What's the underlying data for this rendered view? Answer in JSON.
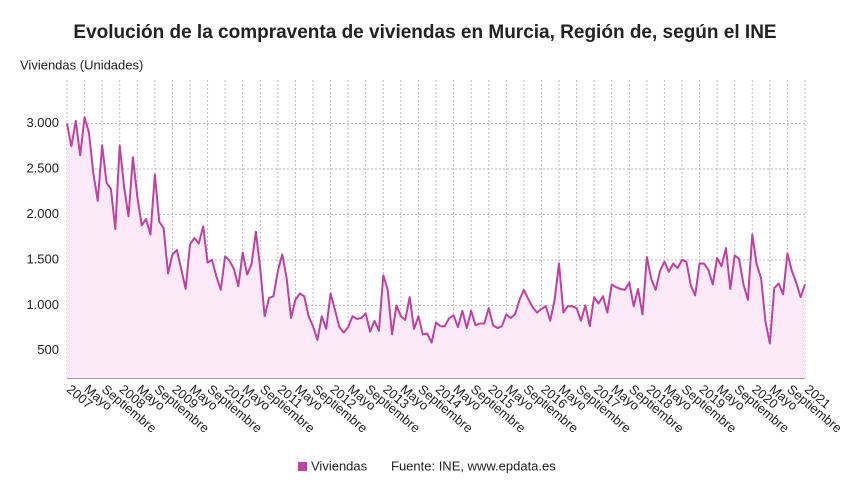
{
  "chart_data": {
    "type": "line",
    "title": "Evolución de la compraventa de viviendas en Murcia, Región de, según el INE",
    "y_label": "Viviendas (Unidades)",
    "source": "Fuente: INE, www.epdata.es",
    "categories": [
      "2007",
      null,
      null,
      null,
      "Mayo",
      null,
      null,
      null,
      "Septiembre",
      null,
      null,
      null,
      "2008",
      null,
      null,
      null,
      "Mayo",
      null,
      null,
      null,
      "Septiembre",
      null,
      null,
      null,
      "2009",
      null,
      null,
      null,
      "Mayo",
      null,
      null,
      null,
      "Septiembre",
      null,
      null,
      null,
      "2010",
      null,
      null,
      null,
      "Mayo",
      null,
      null,
      null,
      "Septiembre",
      null,
      null,
      null,
      "2011",
      null,
      null,
      null,
      "Mayo",
      null,
      null,
      null,
      "Septiembre",
      null,
      null,
      null,
      "2012",
      null,
      null,
      null,
      "Mayo",
      null,
      null,
      null,
      "Septiembre",
      null,
      null,
      null,
      "2013",
      null,
      null,
      null,
      "Mayo",
      null,
      null,
      null,
      "Septiembre",
      null,
      null,
      null,
      "2014",
      null,
      null,
      null,
      "Mayo",
      null,
      null,
      null,
      "Septiembre",
      null,
      null,
      null,
      "2015",
      null,
      null,
      null,
      "Mayo",
      null,
      null,
      null,
      "Septiembre",
      null,
      null,
      null,
      "2016",
      null,
      null,
      null,
      "Mayo",
      null,
      null,
      null,
      "Septiembre",
      null,
      null,
      null,
      "2017",
      null,
      null,
      null,
      "Mayo",
      null,
      null,
      null,
      "Septiembre",
      null,
      null,
      null,
      "2018",
      null,
      null,
      null,
      "Mayo",
      null,
      null,
      null,
      "Septiembre",
      null,
      null,
      null,
      "2019",
      null,
      null,
      null,
      "Mayo",
      null,
      null,
      null,
      "Septiembre",
      null,
      null,
      null,
      "2020",
      null,
      null,
      null,
      "Mayo",
      null,
      null,
      null,
      "Septiembre",
      null,
      null,
      null,
      "2021"
    ],
    "series": [
      {
        "name": "Viviendas",
        "color": "#c2409f",
        "values": [
          3000,
          2750,
          3030,
          2650,
          3070,
          2900,
          2450,
          2150,
          2760,
          2350,
          2280,
          1840,
          2760,
          2300,
          1980,
          2630,
          2200,
          1880,
          1950,
          1780,
          2440,
          1920,
          1850,
          1350,
          1560,
          1610,
          1400,
          1180,
          1670,
          1740,
          1680,
          1870,
          1470,
          1500,
          1320,
          1170,
          1540,
          1490,
          1400,
          1210,
          1580,
          1340,
          1450,
          1810,
          1400,
          880,
          1080,
          1100,
          1380,
          1560,
          1300,
          860,
          1060,
          1130,
          1100,
          880,
          770,
          620,
          880,
          740,
          1130,
          950,
          760,
          700,
          760,
          880,
          850,
          860,
          910,
          710,
          830,
          720,
          1330,
          1170,
          680,
          1000,
          880,
          840,
          1090,
          740,
          880,
          680,
          690,
          590,
          810,
          770,
          770,
          860,
          890,
          760,
          940,
          750,
          940,
          780,
          800,
          800,
          970,
          780,
          750,
          770,
          900,
          860,
          900,
          1060,
          1170,
          1070,
          980,
          920,
          960,
          990,
          830,
          1060,
          1460,
          920,
          990,
          990,
          970,
          830,
          1000,
          770,
          1090,
          1020,
          1100,
          920,
          1230,
          1200,
          1180,
          1170,
          1250,
          990,
          1180,
          900,
          1530,
          1290,
          1170,
          1380,
          1480,
          1370,
          1460,
          1410,
          1500,
          1480,
          1220,
          1110,
          1460,
          1460,
          1390,
          1230,
          1520,
          1430,
          1630,
          1180,
          1550,
          1510,
          1230,
          1060,
          1780,
          1450,
          1300,
          820,
          580,
          1190,
          1240,
          1120,
          1570,
          1380,
          1250,
          1090,
          1230
        ]
      }
    ],
    "ylim": [
      200,
      3480
    ],
    "yticks": [
      500,
      {
        "value": 1000,
        "label": "1.000"
      },
      {
        "value": 1500,
        "label": "1.500"
      },
      {
        "value": 2000,
        "label": "2.000"
      },
      {
        "value": 2500,
        "label": "2.500"
      },
      {
        "value": 3000,
        "label": "3.000"
      }
    ],
    "grid": true,
    "area_fill": "#fdeaf8",
    "legend": "bottom"
  }
}
